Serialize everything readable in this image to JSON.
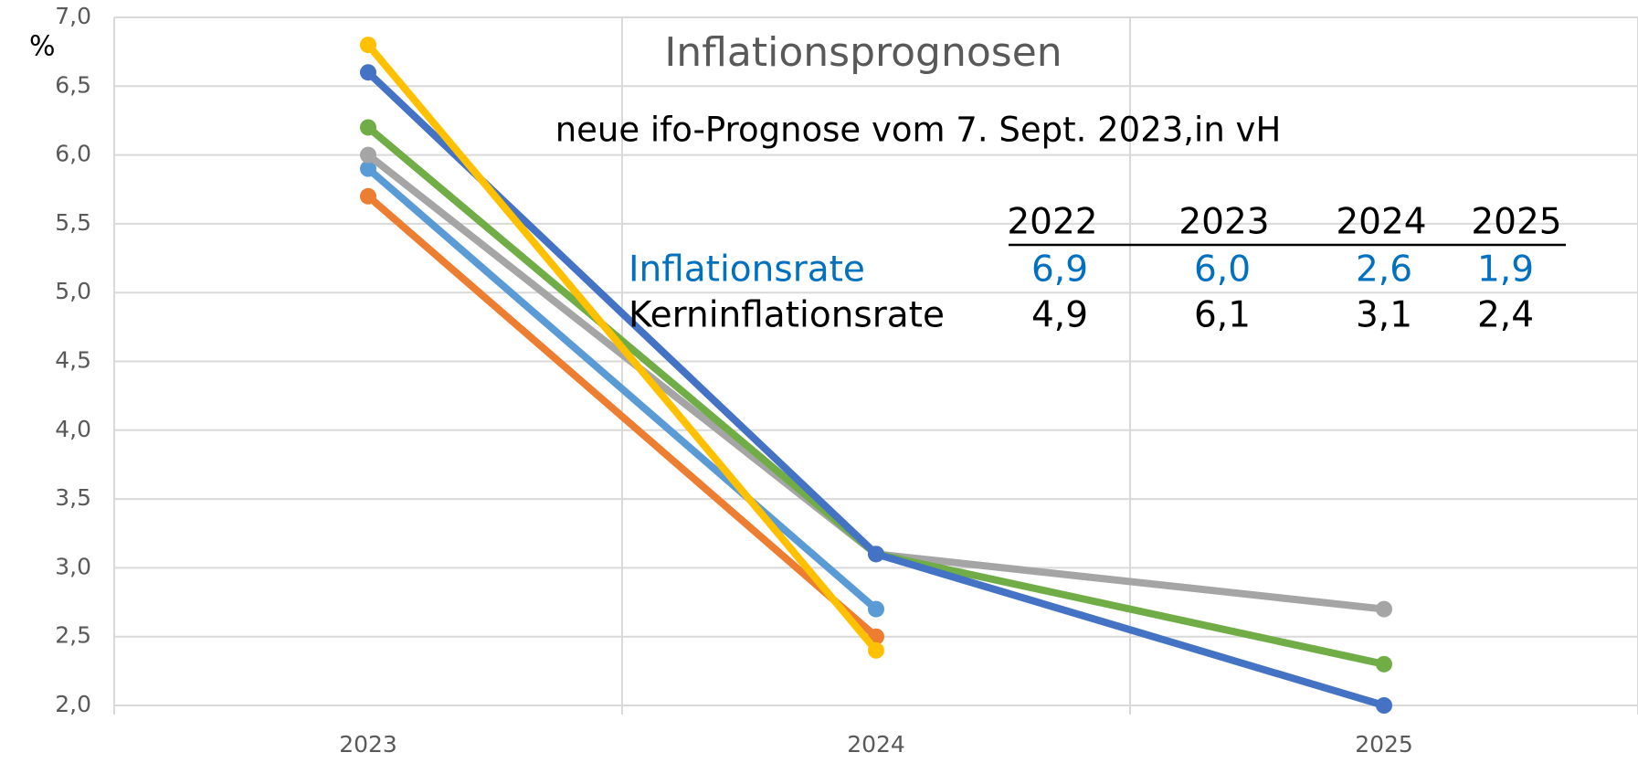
{
  "chart_data": {
    "type": "line",
    "title": "Inflationsprognosen",
    "subtitle": "neue ifo-Prognose vom 7. Sept. 2023,in vH",
    "y_label": "%",
    "categories": [
      "2023",
      "2024",
      "2025"
    ],
    "series": [
      {
        "color": "#ED7D31",
        "values": [
          5.7,
          2.5,
          null
        ]
      },
      {
        "color": "#5B9BD5",
        "values": [
          5.9,
          2.7,
          null
        ]
      },
      {
        "color": "#A5A5A5",
        "values": [
          6.0,
          3.1,
          2.7
        ]
      },
      {
        "color": "#70AD47",
        "values": [
          6.2,
          3.1,
          2.3
        ]
      },
      {
        "color": "#4472C4",
        "values": [
          6.6,
          3.1,
          2.0
        ]
      },
      {
        "color": "#FFC000",
        "values": [
          6.8,
          2.4,
          null
        ]
      }
    ],
    "ylim": [
      2,
      7
    ],
    "yticks": [
      {
        "value": 2,
        "label": "2,0"
      },
      {
        "value": 2.5,
        "label": "2,5"
      },
      {
        "value": 3,
        "label": "3,0"
      },
      {
        "value": 3.5,
        "label": "3,5"
      },
      {
        "value": 4,
        "label": "4,0"
      },
      {
        "value": 4.5,
        "label": "4,5"
      },
      {
        "value": 5,
        "label": "5,0"
      },
      {
        "value": 5.5,
        "label": "5,5"
      },
      {
        "value": 6,
        "label": "6,0"
      },
      {
        "value": 6.5,
        "label": "6,5"
      },
      {
        "value": 7,
        "label": "7,0"
      }
    ],
    "grid": true,
    "table": {
      "header": [
        "2022",
        "2023",
        "2024",
        "2025"
      ],
      "rows": [
        {
          "label": "Inflationsrate",
          "color": "#0070C0",
          "values": [
            "6,9",
            "6,0",
            "2,6",
            "1,9"
          ]
        },
        {
          "label": "Kerninflationsrate",
          "color": "#000000",
          "values": [
            "4,9",
            "6,1",
            "3,1",
            "2,4"
          ]
        }
      ]
    }
  }
}
